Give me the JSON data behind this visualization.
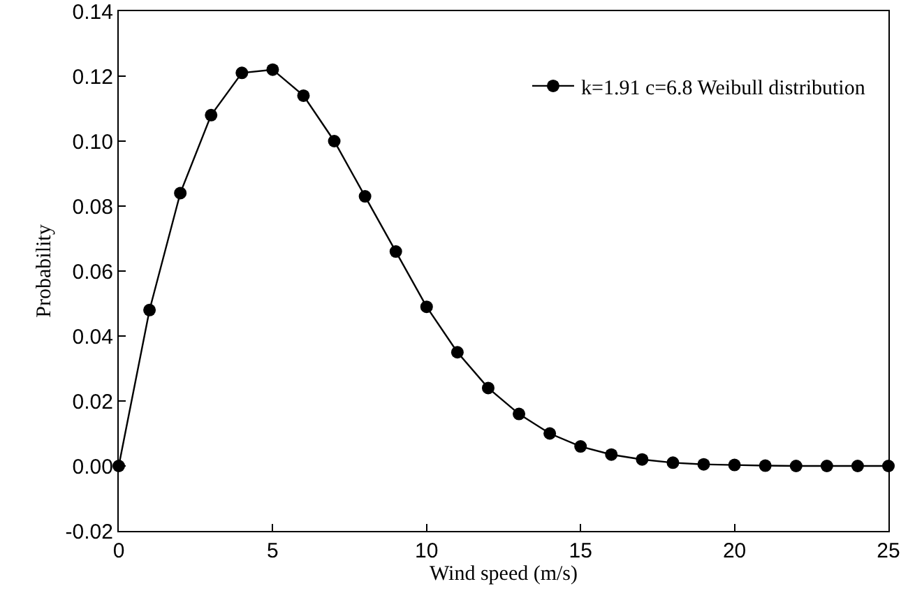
{
  "chart_data": {
    "type": "line",
    "xlabel": "Wind speed (m/s)",
    "ylabel": "Probability",
    "x": [
      0,
      1,
      2,
      3,
      4,
      5,
      6,
      7,
      8,
      9,
      10,
      11,
      12,
      13,
      14,
      15,
      16,
      17,
      18,
      19,
      20,
      21,
      22,
      23,
      24,
      25
    ],
    "series": [
      {
        "name": "k=1.91 c=6.8 Weibull distribution",
        "color": "#000000",
        "values": [
          0,
          0.048,
          0.084,
          0.108,
          0.121,
          0.122,
          0.114,
          0.1,
          0.083,
          0.066,
          0.049,
          0.035,
          0.024,
          0.016,
          0.01,
          0.006,
          0.0035,
          0.002,
          0.001,
          0.0005,
          0.0003,
          0.0001,
          0,
          0,
          0,
          0
        ]
      }
    ],
    "xlim": [
      0,
      25
    ],
    "xticks": [
      0,
      5,
      10,
      15,
      20,
      25
    ],
    "ylim": [
      -0.02,
      0.14
    ],
    "yticks": [
      {
        "value": -0.02,
        "label": "-0.02"
      },
      {
        "value": 0,
        "label": "0.00"
      },
      {
        "value": 0.02,
        "label": "0.02"
      },
      {
        "value": 0.04,
        "label": "0.04"
      },
      {
        "value": 0.06,
        "label": "0.06"
      },
      {
        "value": 0.08,
        "label": "0.08"
      },
      {
        "value": 0.1,
        "label": "0.10"
      },
      {
        "value": 0.12,
        "label": "0.12"
      },
      {
        "value": 0.14,
        "label": "0.14"
      }
    ],
    "grid": false,
    "legend": "top right",
    "marker": "circle",
    "line_style": "solid"
  }
}
